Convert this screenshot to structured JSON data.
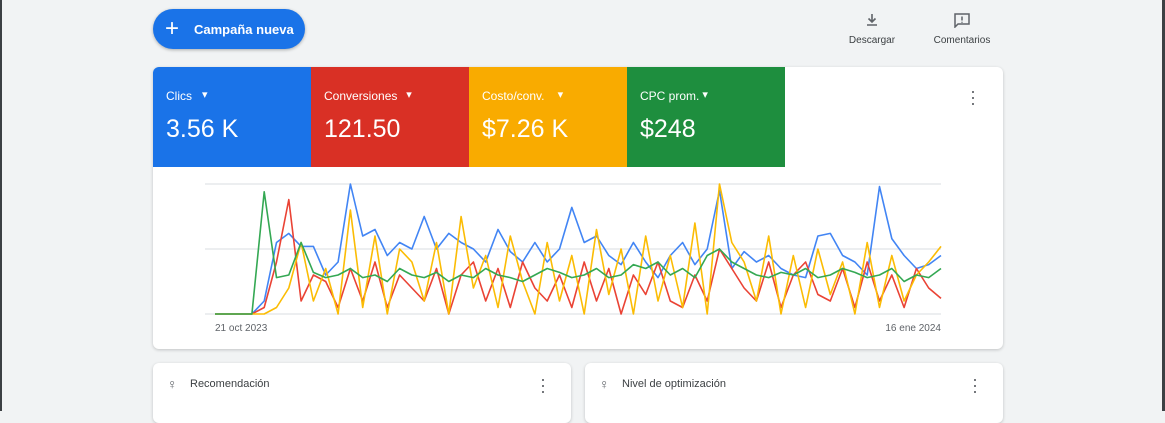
{
  "header": {
    "new_campaign": "Campaña nueva",
    "download": "Descargar",
    "feedback": "Comentarios"
  },
  "metrics": [
    {
      "label": "Clics",
      "value": "3.56 K",
      "color": "#1a73e8"
    },
    {
      "label": "Conversiones",
      "value": "121.50",
      "color": "#d93025"
    },
    {
      "label": "Costo/conv.",
      "value": "$7.26 K",
      "color": "#f9ab00"
    },
    {
      "label": "CPC prom.",
      "value": "$248",
      "color": "#1e8e3e"
    }
  ],
  "chart_data": {
    "type": "line",
    "categories": [
      "21 oct 2023",
      null,
      null,
      null,
      null,
      null,
      null,
      null,
      null,
      null,
      null,
      null,
      null,
      null,
      null,
      null,
      null,
      null,
      null,
      null,
      null,
      null,
      null,
      null,
      null,
      null,
      null,
      null,
      null,
      null,
      null,
      null,
      null,
      null,
      null,
      null,
      null,
      null,
      null,
      null,
      null,
      null,
      null,
      null,
      null,
      null,
      null,
      null,
      null,
      null,
      null,
      null,
      null,
      null,
      null,
      null,
      null,
      null,
      null,
      "16 ene 2024"
    ],
    "ylim": [
      0,
      100
    ],
    "yticks": [
      0,
      50,
      100
    ],
    "grid": true,
    "series": [
      {
        "name": "Clics",
        "color": "#4285f4",
        "values": [
          0,
          0,
          0,
          0,
          10,
          55,
          62,
          52,
          52,
          30,
          40,
          100,
          60,
          65,
          45,
          55,
          50,
          75,
          50,
          62,
          55,
          50,
          40,
          65,
          48,
          40,
          55,
          40,
          50,
          82,
          55,
          60,
          45,
          38,
          55,
          40,
          28,
          45,
          55,
          38,
          50,
          95,
          35,
          48,
          40,
          45,
          35,
          30,
          28,
          60,
          62,
          45,
          40,
          30,
          98,
          58,
          45,
          35,
          38,
          45
        ]
      },
      {
        "name": "Conversiones",
        "color": "#ea4335",
        "values": [
          0,
          0,
          0,
          0,
          5,
          40,
          88,
          10,
          30,
          25,
          5,
          35,
          10,
          40,
          5,
          30,
          20,
          10,
          35,
          0,
          30,
          40,
          10,
          35,
          5,
          40,
          20,
          10,
          30,
          5,
          40,
          10,
          35,
          0,
          30,
          15,
          40,
          10,
          5,
          30,
          10,
          50,
          35,
          20,
          10,
          40,
          5,
          30,
          40,
          15,
          10,
          35,
          5,
          40,
          10,
          30,
          5,
          35,
          20,
          12
        ]
      },
      {
        "name": "Costo/conv.",
        "color": "#fbbc04",
        "values": [
          0,
          0,
          0,
          0,
          0,
          5,
          20,
          55,
          10,
          35,
          0,
          80,
          5,
          60,
          0,
          50,
          40,
          10,
          55,
          0,
          75,
          20,
          45,
          5,
          60,
          25,
          0,
          55,
          10,
          45,
          0,
          65,
          15,
          50,
          0,
          60,
          10,
          45,
          5,
          70,
          0,
          100,
          55,
          40,
          10,
          60,
          0,
          45,
          5,
          50,
          15,
          40,
          0,
          55,
          5,
          45,
          10,
          30,
          40,
          52
        ]
      },
      {
        "name": "CPC prom.",
        "color": "#34a853",
        "values": [
          0,
          0,
          0,
          0,
          94,
          28,
          30,
          55,
          32,
          28,
          30,
          35,
          28,
          30,
          25,
          35,
          30,
          28,
          32,
          25,
          30,
          28,
          35,
          30,
          28,
          25,
          30,
          35,
          32,
          28,
          30,
          35,
          28,
          30,
          38,
          35,
          40,
          30,
          35,
          28,
          45,
          50,
          40,
          35,
          30,
          28,
          32,
          30,
          35,
          28,
          30,
          35,
          32,
          28,
          30,
          35,
          25,
          30,
          28,
          35
        ]
      }
    ]
  },
  "cards": [
    {
      "title": "Recomendación"
    },
    {
      "title": "Nivel de optimización"
    }
  ]
}
